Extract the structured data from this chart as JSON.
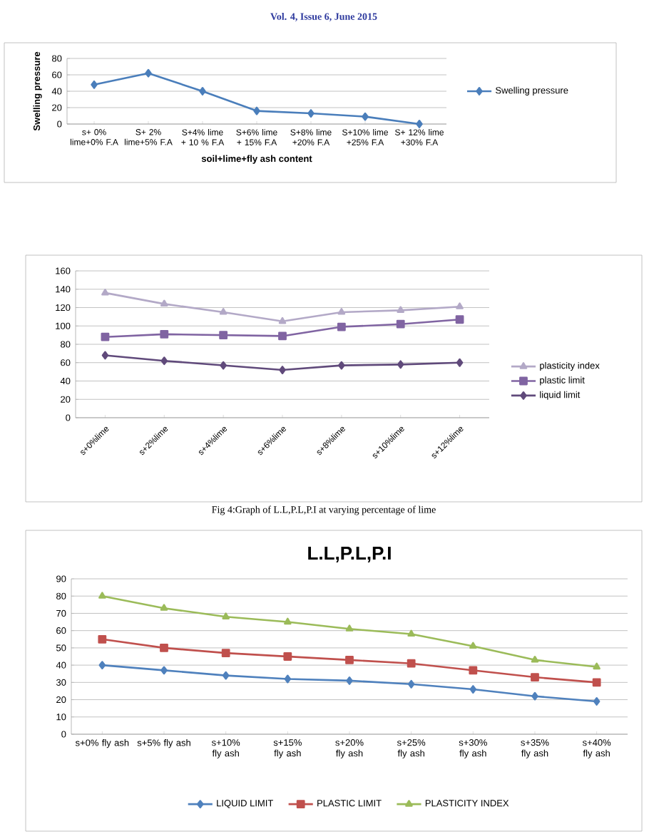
{
  "chart_data": [
    {
      "type": "line",
      "xlabel": "soil+lime+fly ash content",
      "ylabel": "Swelling pressure",
      "annotations": [
        "Vol. 4, Issue 6, June 2015"
      ],
      "categories": [
        "s+  0% lime+0% F.A",
        "S+  2% lime+5% F.A",
        "S+4% lime + 10 % F.A",
        "S+6% lime + 15% F.A",
        "S+8% lime +20% F.A",
        "S+10% lime +25% F.A",
        "S+ 12% lime +30% F.A"
      ],
      "series": [
        {
          "name": "Swelling pressure",
          "color": "#4a7ebb",
          "marker": "diamond",
          "values": [
            48,
            62,
            40,
            16,
            13,
            9,
            0
          ]
        }
      ],
      "ylim": [
        0,
        80
      ],
      "yticks": [
        0,
        20,
        40,
        60,
        80
      ],
      "grid": "y",
      "legend": "right"
    },
    {
      "type": "line",
      "annotations": [
        "Fig 4:Graph of L.L,P.L,P.I at varying percentage of lime"
      ],
      "categories": [
        "s+0%lime",
        "s+2%lime",
        "s+4%lime",
        "s+6%lime",
        "s+8%lime",
        "s+10%lime",
        "s+12%lime"
      ],
      "series": [
        {
          "name": "plasticity index",
          "color": "#b3a9c7",
          "marker": "triangle",
          "values": [
            136,
            124,
            115,
            105,
            115,
            117,
            121
          ]
        },
        {
          "name": "plastic limit",
          "color": "#8064a2",
          "marker": "square",
          "values": [
            88,
            91,
            90,
            89,
            99,
            102,
            107
          ]
        },
        {
          "name": "liquid limit",
          "color": "#604a7b",
          "marker": "diamond",
          "values": [
            68,
            62,
            57,
            52,
            57,
            58,
            60
          ]
        }
      ],
      "ylim": [
        0,
        160
      ],
      "yticks": [
        0,
        20,
        40,
        60,
        80,
        100,
        120,
        140,
        160
      ],
      "grid": "y",
      "legend": "right"
    },
    {
      "type": "line",
      "title": "L.L,P.L,P.I",
      "categories": [
        "s+0% fly ash",
        "s+5% fly ash",
        "s+10% fly ash",
        "s+15% fly ash",
        "s+20% fly ash",
        "s+25% fly ash",
        "s+30% fly ash",
        "s+35% fly ash",
        "s+40% fly ash"
      ],
      "series": [
        {
          "name": "LIQUID LIMIT",
          "color": "#4f81bd",
          "marker": "diamond",
          "values": [
            40,
            37,
            34,
            32,
            31,
            29,
            26,
            22,
            19
          ]
        },
        {
          "name": "PLASTIC LIMIT",
          "color": "#c0504d",
          "marker": "square",
          "values": [
            55,
            50,
            47,
            45,
            43,
            41,
            37,
            33,
            30
          ]
        },
        {
          "name": "PLASTICITY INDEX",
          "color": "#9bbb59",
          "marker": "triangle",
          "values": [
            80,
            73,
            68,
            65,
            61,
            58,
            51,
            43,
            39
          ]
        }
      ],
      "ylim": [
        0,
        90
      ],
      "yticks": [
        0,
        10,
        20,
        30,
        40,
        50,
        60,
        70,
        80,
        90
      ],
      "grid": "y",
      "legend": "bottom"
    }
  ]
}
